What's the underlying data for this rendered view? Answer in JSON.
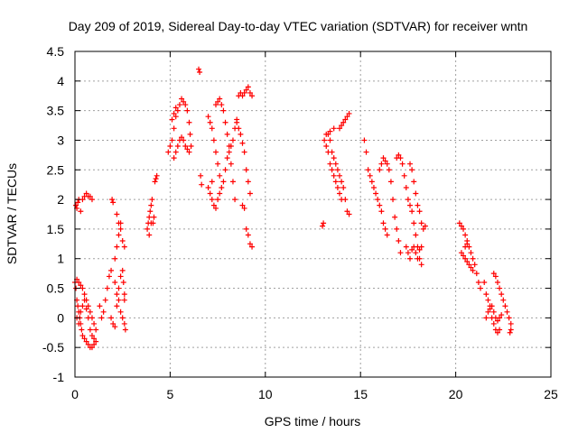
{
  "chart_data": {
    "type": "scatter",
    "title": "Day 209 of 2019, Sidereal Day-to-day VTEC variation (SDTVAR) for receiver wntn",
    "xlabel": "GPS time / hours",
    "ylabel": "SDTVAR / TECUs",
    "xlim": [
      0,
      25
    ],
    "ylim": [
      -1,
      4.5
    ],
    "xticks": [
      "0",
      "5",
      "10",
      "15",
      "20",
      "25"
    ],
    "xtick_values": [
      0,
      5,
      10,
      15,
      20,
      25
    ],
    "yticks": [
      "-1",
      "-0.5",
      "0",
      "0.5",
      "1",
      "1.5",
      "2",
      "2.5",
      "3",
      "3.5",
      "4",
      "4.5"
    ],
    "ytick_values": [
      -1,
      -0.5,
      0,
      0.5,
      1,
      1.5,
      2,
      2.5,
      3,
      3.5,
      4,
      4.5
    ],
    "grid": true,
    "marker": "+",
    "color": "#ff0000",
    "series": [
      {
        "name": "SDTVAR",
        "points": [
          [
            0.05,
            1.9
          ],
          [
            0.1,
            1.85
          ],
          [
            0.15,
            1.95
          ],
          [
            0.2,
            2.0
          ],
          [
            0.3,
            1.8
          ],
          [
            0.4,
            2.0
          ],
          [
            0.5,
            2.05
          ],
          [
            0.6,
            2.1
          ],
          [
            0.7,
            2.05
          ],
          [
            0.8,
            2.05
          ],
          [
            0.9,
            2.0
          ],
          [
            0.0,
            0.6
          ],
          [
            0.05,
            0.5
          ],
          [
            0.1,
            0.3
          ],
          [
            0.15,
            0.2
          ],
          [
            0.2,
            0.1
          ],
          [
            0.25,
            0.0
          ],
          [
            0.3,
            -0.1
          ],
          [
            0.35,
            -0.2
          ],
          [
            0.4,
            -0.3
          ],
          [
            0.5,
            -0.35
          ],
          [
            0.6,
            -0.4
          ],
          [
            0.7,
            -0.45
          ],
          [
            0.8,
            -0.5
          ],
          [
            0.9,
            -0.5
          ],
          [
            1.0,
            -0.45
          ],
          [
            1.1,
            -0.4
          ],
          [
            0.1,
            0.65
          ],
          [
            0.2,
            0.6
          ],
          [
            0.3,
            0.55
          ],
          [
            0.4,
            0.5
          ],
          [
            0.5,
            0.4
          ],
          [
            0.6,
            0.3
          ],
          [
            0.7,
            0.2
          ],
          [
            0.8,
            0.1
          ],
          [
            0.9,
            0.0
          ],
          [
            1.0,
            -0.1
          ],
          [
            1.1,
            -0.2
          ],
          [
            0.1,
            0.0
          ],
          [
            0.2,
            -0.1
          ],
          [
            0.3,
            0.1
          ],
          [
            0.4,
            0.2
          ],
          [
            0.5,
            0.3
          ],
          [
            0.6,
            0.15
          ],
          [
            0.7,
            0.0
          ],
          [
            0.8,
            -0.2
          ],
          [
            0.9,
            -0.3
          ],
          [
            1.0,
            -0.35
          ],
          [
            1.3,
            0.2
          ],
          [
            1.4,
            0.0
          ],
          [
            1.5,
            0.1
          ],
          [
            1.6,
            0.3
          ],
          [
            1.7,
            0.5
          ],
          [
            1.8,
            0.7
          ],
          [
            1.9,
            0.8
          ],
          [
            1.95,
            2.0
          ],
          [
            2.0,
            1.95
          ],
          [
            2.1,
            0.6
          ],
          [
            2.2,
            0.4
          ],
          [
            2.3,
            0.3
          ],
          [
            2.4,
            0.1
          ],
          [
            2.5,
            0.0
          ],
          [
            2.6,
            -0.1
          ],
          [
            2.65,
            -0.2
          ],
          [
            2.1,
            1.0
          ],
          [
            2.2,
            1.2
          ],
          [
            2.3,
            1.4
          ],
          [
            2.4,
            1.6
          ],
          [
            2.5,
            1.3
          ],
          [
            2.6,
            1.2
          ],
          [
            2.2,
            1.75
          ],
          [
            2.3,
            1.6
          ],
          [
            2.4,
            1.5
          ],
          [
            2.5,
            0.8
          ],
          [
            2.55,
            0.6
          ],
          [
            2.6,
            0.4
          ],
          [
            1.9,
            0.0
          ],
          [
            2.0,
            -0.1
          ],
          [
            2.1,
            -0.15
          ],
          [
            2.2,
            0.2
          ],
          [
            2.3,
            0.5
          ],
          [
            2.4,
            0.7
          ],
          [
            2.6,
            0.3
          ],
          [
            3.8,
            1.5
          ],
          [
            3.85,
            1.6
          ],
          [
            3.9,
            1.7
          ],
          [
            3.95,
            1.8
          ],
          [
            4.0,
            1.9
          ],
          [
            4.05,
            2.0
          ],
          [
            4.1,
            1.6
          ],
          [
            4.15,
            1.7
          ],
          [
            4.2,
            2.3
          ],
          [
            4.25,
            2.35
          ],
          [
            4.3,
            2.4
          ],
          [
            3.9,
            1.4
          ],
          [
            4.0,
            1.6
          ],
          [
            4.9,
            2.8
          ],
          [
            5.0,
            2.9
          ],
          [
            5.1,
            3.0
          ],
          [
            5.2,
            3.2
          ],
          [
            5.3,
            3.4
          ],
          [
            5.4,
            3.5
          ],
          [
            5.5,
            3.6
          ],
          [
            5.6,
            3.7
          ],
          [
            5.7,
            3.65
          ],
          [
            5.8,
            3.6
          ],
          [
            5.9,
            3.5
          ],
          [
            6.0,
            3.3
          ],
          [
            6.05,
            3.1
          ],
          [
            6.1,
            2.9
          ],
          [
            5.2,
            2.7
          ],
          [
            5.3,
            2.8
          ],
          [
            5.4,
            2.9
          ],
          [
            5.5,
            3.0
          ],
          [
            5.6,
            3.05
          ],
          [
            5.7,
            3.0
          ],
          [
            5.8,
            2.9
          ],
          [
            5.9,
            2.85
          ],
          [
            6.0,
            2.8
          ],
          [
            5.1,
            3.35
          ],
          [
            5.2,
            3.45
          ],
          [
            5.3,
            3.55
          ],
          [
            6.5,
            4.2
          ],
          [
            6.55,
            4.15
          ],
          [
            6.6,
            2.4
          ],
          [
            6.65,
            2.25
          ],
          [
            7.0,
            3.4
          ],
          [
            7.1,
            3.3
          ],
          [
            7.2,
            3.2
          ],
          [
            7.3,
            3.0
          ],
          [
            7.4,
            2.8
          ],
          [
            7.5,
            2.6
          ],
          [
            7.6,
            2.4
          ],
          [
            7.7,
            2.2
          ],
          [
            7.8,
            2.3
          ],
          [
            7.9,
            2.5
          ],
          [
            8.0,
            2.7
          ],
          [
            8.1,
            2.8
          ],
          [
            8.2,
            2.9
          ],
          [
            8.3,
            3.0
          ],
          [
            8.4,
            3.2
          ],
          [
            8.5,
            3.35
          ],
          [
            7.4,
            3.6
          ],
          [
            7.5,
            3.65
          ],
          [
            7.6,
            3.7
          ],
          [
            7.7,
            3.6
          ],
          [
            7.8,
            3.5
          ],
          [
            7.9,
            3.3
          ],
          [
            8.0,
            3.1
          ],
          [
            8.1,
            2.9
          ],
          [
            8.2,
            2.6
          ],
          [
            8.3,
            2.3
          ],
          [
            8.4,
            2.0
          ],
          [
            7.0,
            2.2
          ],
          [
            7.1,
            2.1
          ],
          [
            7.2,
            2.0
          ],
          [
            7.3,
            1.9
          ],
          [
            7.4,
            1.85
          ],
          [
            7.5,
            2.0
          ],
          [
            7.6,
            2.1
          ],
          [
            7.2,
            2.3
          ],
          [
            8.5,
            3.3
          ],
          [
            8.6,
            3.2
          ],
          [
            8.7,
            3.1
          ],
          [
            8.8,
            2.95
          ],
          [
            8.9,
            2.8
          ],
          [
            9.0,
            2.5
          ],
          [
            9.1,
            2.3
          ],
          [
            9.2,
            2.1
          ],
          [
            8.8,
            3.75
          ],
          [
            8.9,
            3.8
          ],
          [
            9.0,
            3.85
          ],
          [
            9.1,
            3.9
          ],
          [
            9.2,
            3.8
          ],
          [
            9.3,
            3.75
          ],
          [
            8.6,
            3.75
          ],
          [
            8.7,
            3.8
          ],
          [
            8.8,
            1.9
          ],
          [
            8.9,
            1.85
          ],
          [
            9.0,
            1.5
          ],
          [
            9.1,
            1.4
          ],
          [
            9.2,
            1.25
          ],
          [
            9.3,
            1.2
          ],
          [
            13.0,
            1.55
          ],
          [
            13.05,
            1.6
          ],
          [
            13.1,
            3.0
          ],
          [
            13.2,
            2.9
          ],
          [
            13.3,
            2.8
          ],
          [
            13.4,
            2.6
          ],
          [
            13.5,
            2.5
          ],
          [
            13.6,
            2.4
          ],
          [
            13.7,
            2.3
          ],
          [
            13.8,
            2.2
          ],
          [
            13.9,
            2.1
          ],
          [
            14.0,
            2.0
          ],
          [
            13.3,
            3.1
          ],
          [
            13.4,
            3.0
          ],
          [
            13.5,
            2.8
          ],
          [
            13.6,
            2.7
          ],
          [
            13.7,
            2.6
          ],
          [
            13.8,
            2.5
          ],
          [
            13.9,
            2.4
          ],
          [
            14.0,
            2.3
          ],
          [
            14.1,
            2.2
          ],
          [
            14.2,
            2.0
          ],
          [
            14.3,
            1.8
          ],
          [
            14.4,
            1.75
          ],
          [
            13.9,
            3.2
          ],
          [
            14.0,
            3.25
          ],
          [
            14.1,
            3.3
          ],
          [
            14.2,
            3.35
          ],
          [
            14.3,
            3.4
          ],
          [
            14.4,
            3.45
          ],
          [
            13.2,
            3.1
          ],
          [
            13.4,
            3.15
          ],
          [
            13.6,
            3.2
          ],
          [
            15.2,
            3.0
          ],
          [
            15.3,
            2.8
          ],
          [
            15.4,
            2.5
          ],
          [
            15.5,
            2.4
          ],
          [
            15.6,
            2.3
          ],
          [
            15.7,
            2.2
          ],
          [
            15.8,
            2.1
          ],
          [
            15.9,
            2.0
          ],
          [
            16.0,
            1.9
          ],
          [
            16.1,
            1.8
          ],
          [
            16.2,
            1.6
          ],
          [
            16.3,
            1.5
          ],
          [
            16.4,
            1.4
          ],
          [
            16.0,
            2.5
          ],
          [
            16.1,
            2.6
          ],
          [
            16.2,
            2.7
          ],
          [
            16.3,
            2.65
          ],
          [
            16.4,
            2.6
          ],
          [
            16.5,
            2.5
          ],
          [
            16.6,
            2.3
          ],
          [
            16.7,
            2.0
          ],
          [
            16.8,
            1.7
          ],
          [
            16.9,
            1.5
          ],
          [
            17.0,
            1.3
          ],
          [
            17.1,
            1.1
          ],
          [
            16.9,
            2.7
          ],
          [
            17.0,
            2.75
          ],
          [
            17.1,
            2.7
          ],
          [
            17.2,
            2.6
          ],
          [
            17.3,
            2.4
          ],
          [
            17.4,
            2.2
          ],
          [
            17.5,
            2.0
          ],
          [
            17.6,
            1.9
          ],
          [
            17.7,
            1.8
          ],
          [
            17.8,
            1.6
          ],
          [
            17.9,
            1.4
          ],
          [
            18.0,
            1.2
          ],
          [
            18.1,
            1.0
          ],
          [
            18.2,
            0.9
          ],
          [
            17.4,
            1.2
          ],
          [
            17.5,
            1.1
          ],
          [
            17.6,
            1.0
          ],
          [
            17.7,
            1.15
          ],
          [
            17.8,
            1.2
          ],
          [
            17.9,
            1.1
          ],
          [
            18.0,
            1.0
          ],
          [
            18.1,
            1.15
          ],
          [
            18.2,
            1.2
          ],
          [
            17.6,
            2.6
          ],
          [
            17.7,
            2.5
          ],
          [
            17.8,
            2.3
          ],
          [
            17.9,
            2.1
          ],
          [
            18.0,
            1.9
          ],
          [
            18.1,
            1.8
          ],
          [
            18.2,
            1.6
          ],
          [
            18.3,
            1.5
          ],
          [
            18.4,
            1.55
          ],
          [
            20.2,
            1.6
          ],
          [
            20.3,
            1.55
          ],
          [
            20.4,
            1.5
          ],
          [
            20.5,
            1.4
          ],
          [
            20.6,
            1.3
          ],
          [
            20.7,
            1.2
          ],
          [
            20.8,
            1.1
          ],
          [
            20.9,
            1.0
          ],
          [
            21.0,
            0.9
          ],
          [
            21.1,
            0.75
          ],
          [
            21.2,
            0.6
          ],
          [
            21.3,
            0.5
          ],
          [
            20.3,
            1.1
          ],
          [
            20.4,
            1.05
          ],
          [
            20.5,
            1.0
          ],
          [
            20.6,
            0.95
          ],
          [
            20.7,
            0.9
          ],
          [
            20.8,
            0.85
          ],
          [
            20.9,
            0.8
          ],
          [
            20.5,
            1.2
          ],
          [
            20.6,
            1.25
          ],
          [
            21.5,
            0.6
          ],
          [
            21.6,
            0.4
          ],
          [
            21.7,
            0.3
          ],
          [
            21.8,
            0.2
          ],
          [
            21.9,
            0.0
          ],
          [
            22.0,
            -0.1
          ],
          [
            22.1,
            -0.2
          ],
          [
            22.2,
            -0.25
          ],
          [
            22.3,
            -0.2
          ],
          [
            21.6,
            0.0
          ],
          [
            21.7,
            0.1
          ],
          [
            21.8,
            0.15
          ],
          [
            21.9,
            0.2
          ],
          [
            22.0,
            0.1
          ],
          [
            22.1,
            0.0
          ],
          [
            22.2,
            -0.05
          ],
          [
            22.3,
            0.0
          ],
          [
            22.4,
            0.05
          ],
          [
            22.0,
            0.75
          ],
          [
            22.1,
            0.7
          ],
          [
            22.2,
            0.6
          ],
          [
            22.3,
            0.5
          ],
          [
            22.4,
            0.4
          ],
          [
            22.5,
            0.3
          ],
          [
            22.6,
            0.2
          ],
          [
            22.7,
            0.1
          ],
          [
            22.8,
            0.0
          ],
          [
            22.9,
            -0.1
          ],
          [
            22.9,
            -0.2
          ],
          [
            22.85,
            -0.25
          ]
        ]
      }
    ]
  }
}
